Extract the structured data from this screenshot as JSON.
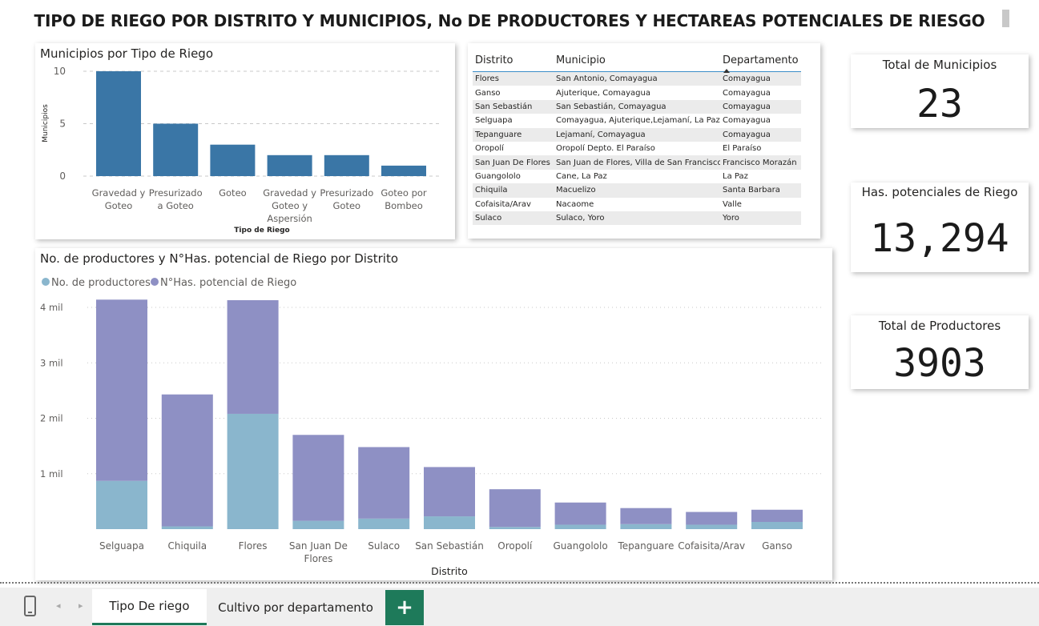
{
  "page": {
    "title": "TIPO DE RIEGO POR DISTRITO Y MUNICIPIOS, No DE PRODUCTORES Y HECTAREAS POTENCIALES DE RIESGO"
  },
  "colors": {
    "bar_blue": "#3a76a6",
    "productores": "#8ab6cd",
    "hectareas": "#8e90c4",
    "accent_green": "#1e7a5a",
    "table_header_line": "#3b8ec8"
  },
  "chart_data": [
    {
      "type": "bar",
      "title": "Municipios por Tipo de Riego",
      "xlabel": "Tipo de Riego",
      "ylabel": "Municipios",
      "categories": [
        [
          "Gravedad y",
          "Goteo"
        ],
        [
          "Presurizado",
          "a Goteo"
        ],
        [
          "Goteo"
        ],
        [
          "Gravedad y",
          "Goteo y",
          "Aspersión"
        ],
        [
          "Presurizado",
          "Goteo"
        ],
        [
          "Goteo por",
          "Bombeo"
        ]
      ],
      "values": [
        10,
        5,
        3,
        2,
        2,
        1
      ],
      "yticks": [
        "0",
        "5",
        "10"
      ],
      "ylim": [
        0,
        10
      ],
      "grid": true
    },
    {
      "type": "bar",
      "stacked": true,
      "title": "No. de productores y N°Has. potencial de Riego por Distrito",
      "xlabel": "Distrito",
      "ylabel": "",
      "legend_position": "top-left",
      "categories": [
        [
          "Selguapa"
        ],
        [
          "Chiquila"
        ],
        [
          "Flores"
        ],
        [
          "San Juan De",
          "Flores"
        ],
        [
          "Sulaco"
        ],
        [
          "San Sebastián"
        ],
        [
          "Oropolí"
        ],
        [
          "Guangololo"
        ],
        [
          "Tepanguare"
        ],
        [
          "Cofaisita/Arav"
        ],
        [
          "Ganso"
        ]
      ],
      "series": [
        {
          "name": "No. de productores",
          "values": [
            870,
            50,
            2080,
            150,
            190,
            230,
            40,
            80,
            90,
            80,
            130
          ]
        },
        {
          "name": "N°Has. potencial de Riego",
          "values": [
            3270,
            2380,
            2050,
            1550,
            1290,
            890,
            680,
            400,
            290,
            230,
            220
          ]
        }
      ],
      "yticks": [
        {
          "value": 1000,
          "label": "1 mil"
        },
        {
          "value": 2000,
          "label": "2 mil"
        },
        {
          "value": 3000,
          "label": "3 mil"
        },
        {
          "value": 4000,
          "label": "4 mil"
        }
      ],
      "ylim": [
        0,
        4150
      ],
      "grid": true
    }
  ],
  "table": {
    "headers": [
      "Distrito",
      "Municipio",
      "Departamento"
    ],
    "sorted_column": "Departamento",
    "rows": [
      [
        "Flores",
        "San Antonio, Comayagua",
        "Comayagua"
      ],
      [
        "Ganso",
        "Ajuterique, Comayagua",
        "Comayagua"
      ],
      [
        "San Sebastián",
        "San Sebastián, Comayagua",
        "Comayagua"
      ],
      [
        "Selguapa",
        "Comayagua, Ajuterique,Lejamaní, La Paz",
        "Comayagua"
      ],
      [
        "Tepanguare",
        "Lejamaní, Comayagua",
        "Comayagua"
      ],
      [
        "Oropolí",
        "Oropolí Depto. El Paraíso",
        "El Paraíso"
      ],
      [
        "San Juan De Flores",
        "San Juan de Flores, Villa de San Francisco",
        "Francisco Morazán"
      ],
      [
        "Guangololo",
        "Cane, La Paz",
        "La Paz"
      ],
      [
        "Chiquila",
        "Macuelizo",
        "Santa Barbara"
      ],
      [
        "Cofaisita/Arav",
        "Nacaome",
        "Valle"
      ],
      [
        "Sulaco",
        "Sulaco, Yoro",
        "Yoro"
      ]
    ]
  },
  "kpis": {
    "municipios": {
      "label": "Total de Municipios",
      "value": "23"
    },
    "hectareas": {
      "label": "Has. potenciales de Riego",
      "value": "13,294"
    },
    "productores": {
      "label": "Total de Productores",
      "value": "3903"
    }
  },
  "tabs": {
    "items": [
      "Tipo De riego",
      "Cultivo por departamento"
    ],
    "active": 0,
    "add_label": "+"
  },
  "icons": {
    "mobile": "mobile-layout-icon",
    "prev": "◂",
    "next": "▸"
  }
}
